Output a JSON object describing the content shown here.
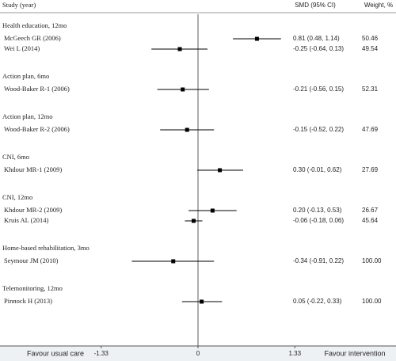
{
  "chart_data": {
    "type": "forest",
    "columns": {
      "study": "Study (year)",
      "smd": "SMD (95% CI)",
      "weight": "Weight, %"
    },
    "xlim": [
      -2.72,
      2.72
    ],
    "xticks": [
      -1.33,
      0,
      1.33
    ],
    "favour_left": "Favour usual care",
    "favour_right": "Favour intervention",
    "groups": [
      {
        "label": "Health education, 12mo",
        "studies": [
          {
            "name": "McGeech GR (2006)",
            "smd": 0.81,
            "ci": [
              0.48,
              1.14
            ],
            "value_label": "0.81 (0.48, 1.14)",
            "weight": "50.46"
          },
          {
            "name": "Wei L (2014)",
            "smd": -0.25,
            "ci": [
              -0.64,
              0.13
            ],
            "value_label": "-0.25 (-0.64, 0.13)",
            "weight": "49.54"
          }
        ]
      },
      {
        "label": "Action plan, 6mo",
        "studies": [
          {
            "name": "Wood-Baker R-1 (2006)",
            "smd": -0.21,
            "ci": [
              -0.56,
              0.15
            ],
            "value_label": "-0.21 (-0.56, 0.15)",
            "weight": "52.31"
          }
        ]
      },
      {
        "label": "Action plan, 12mo",
        "studies": [
          {
            "name": "Wood-Baker R-2 (2006)",
            "smd": -0.15,
            "ci": [
              -0.52,
              0.22
            ],
            "value_label": "-0.15 (-0.52, 0.22)",
            "weight": "47.69"
          }
        ]
      },
      {
        "label": "CNI, 6mo",
        "studies": [
          {
            "name": "Khdour MR-1 (2009)",
            "smd": 0.3,
            "ci": [
              -0.01,
              0.62
            ],
            "value_label": "0.30 (-0.01, 0.62)",
            "weight": "27.69"
          }
        ]
      },
      {
        "label": "CNI, 12mo",
        "studies": [
          {
            "name": "Khdour MR-2 (2009)",
            "smd": 0.2,
            "ci": [
              -0.13,
              0.53
            ],
            "value_label": "0.20 (-0.13, 0.53)",
            "weight": "26.67"
          },
          {
            "name": "Kruis AL (2014)",
            "smd": -0.06,
            "ci": [
              -0.18,
              0.06
            ],
            "value_label": "-0.06 (-0.18, 0.06)",
            "weight": "45.64"
          }
        ]
      },
      {
        "label": "Home-based rehabilitation, 3mo",
        "studies": [
          {
            "name": "Seymour JM (2010)",
            "smd": -0.34,
            "ci": [
              -0.91,
              0.22
            ],
            "value_label": "-0.34 (-0.91, 0.22)",
            "weight": "100.00"
          }
        ]
      },
      {
        "label": "Telemonitoring, 12mo",
        "studies": [
          {
            "name": "Pinnock H (2013)",
            "smd": 0.05,
            "ci": [
              -0.22,
              0.33
            ],
            "value_label": "0.05 (-0.22, 0.33)",
            "weight": "100.00"
          }
        ]
      }
    ]
  }
}
